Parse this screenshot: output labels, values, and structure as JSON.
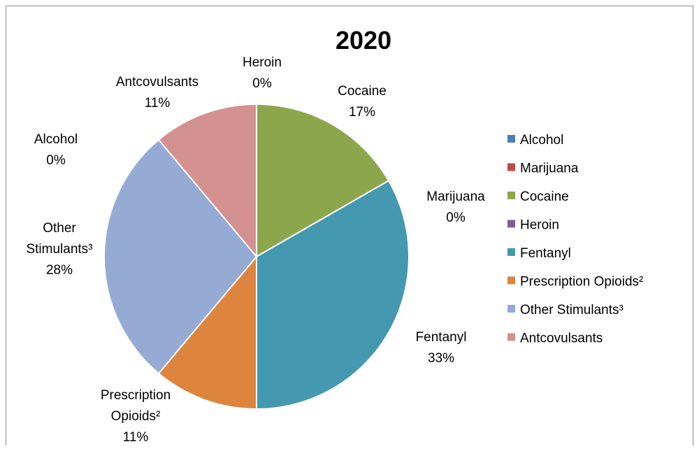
{
  "chart_data": {
    "type": "pie",
    "title": "2020",
    "legend_position": "right",
    "categories": [
      "Alcohol",
      "Marijuana",
      "Cocaine",
      "Heroin",
      "Fentanyl",
      "Prescription Opioids²",
      "Other Stimulants³",
      "Antcovulsants"
    ],
    "values": [
      0,
      0,
      16.7,
      0,
      33.3,
      11.1,
      27.8,
      11.1
    ],
    "data_labels": [
      {
        "name": "Alcohol",
        "percent": "0%"
      },
      {
        "name": "Marijuana",
        "percent": "0%"
      },
      {
        "name": "Cocaine",
        "percent": "17%"
      },
      {
        "name": "Heroin",
        "percent": "0%"
      },
      {
        "name": "Fentanyl",
        "percent": "33%"
      },
      {
        "name": "Prescription Opioids²",
        "percent": "11%"
      },
      {
        "name": "Other Stimulants³",
        "percent": "28%"
      },
      {
        "name": "Antcovulsants",
        "percent": "11%"
      }
    ],
    "colors": [
      "#4a7ebb",
      "#be4b48",
      "#8ca74b",
      "#7d5fa0",
      "#4498b0",
      "#dd853e",
      "#95abd3",
      "#d39190"
    ]
  }
}
